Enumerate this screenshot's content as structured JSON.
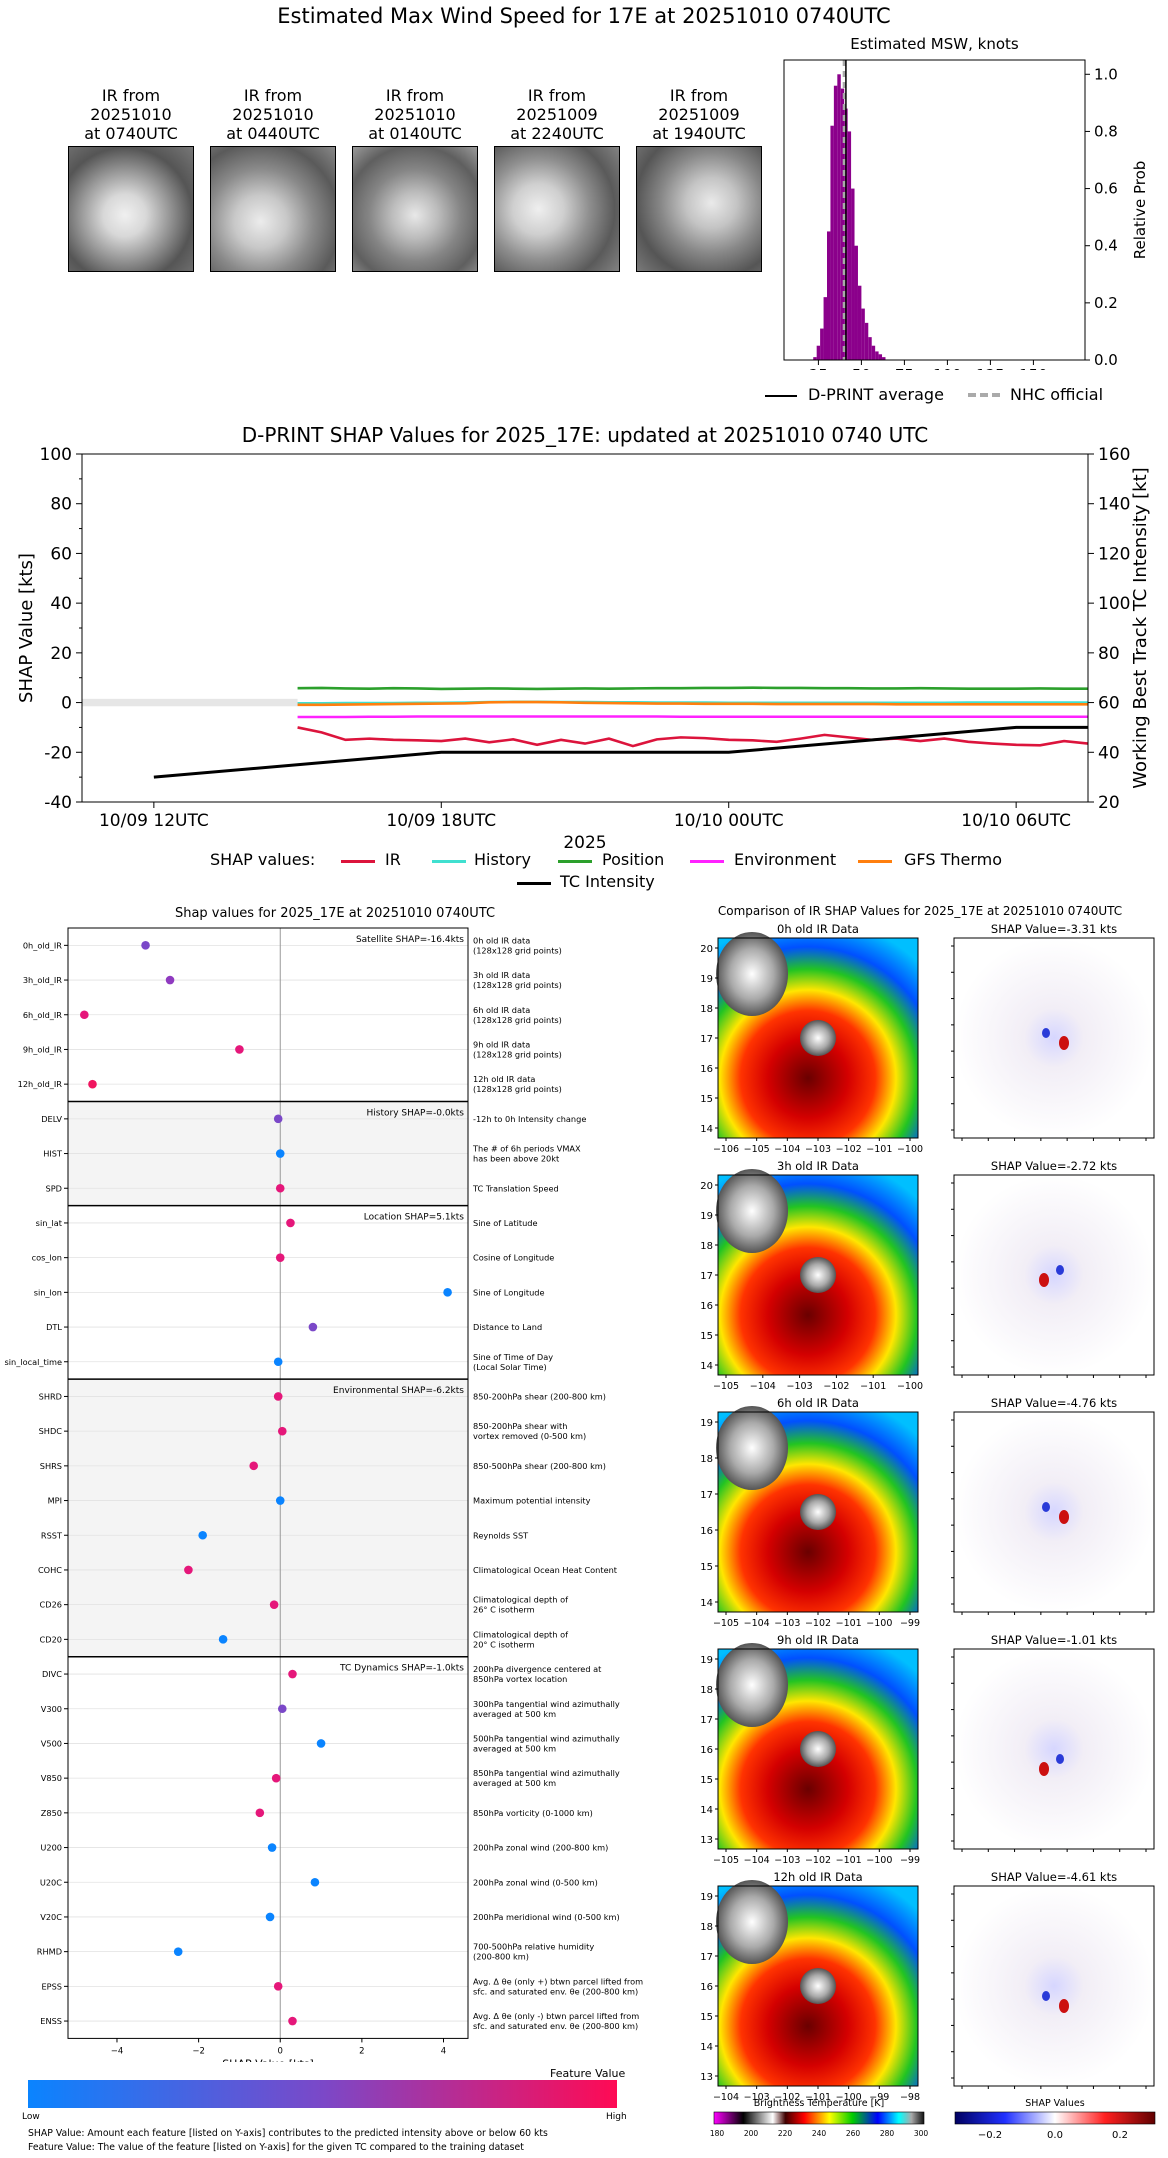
{
  "page_title": "Estimated Max Wind Speed for 17E at 20251010 0740UTC",
  "ir_thumbs": [
    {
      "l1": "IR from",
      "l2": "20251010",
      "l3": "at 0740UTC"
    },
    {
      "l1": "IR from",
      "l2": "20251010",
      "l3": "at 0440UTC"
    },
    {
      "l1": "IR from",
      "l2": "20251010",
      "l3": "at 0140UTC"
    },
    {
      "l1": "IR from",
      "l2": "20251009",
      "l3": "at 2240UTC"
    },
    {
      "l1": "IR from",
      "l2": "20251009",
      "l3": "at 1940UTC"
    }
  ],
  "hist_legend": {
    "avg": "D-PRINT average",
    "nhc": "NHC official"
  },
  "shap_legend": {
    "title": "SHAP values:",
    "tc": "TC Intensity"
  },
  "left_panel": {
    "title": "Shap values for 2025_17E at 20251010 0740UTC",
    "xlabel": "SHAP Value [kts]",
    "groups": [
      {
        "label": "Satellite SHAP=-16.4kts"
      },
      {
        "label": "History SHAP=-0.0kts"
      },
      {
        "label": "Location SHAP=5.1kts"
      },
      {
        "label": "Environmental SHAP=-6.2kts"
      },
      {
        "label": "TC Dynamics SHAP=-1.0kts"
      }
    ],
    "features": [
      {
        "name": "0h_old_IR",
        "desc": [
          "0h old IR data",
          "(128x128 grid points)"
        ],
        "value": -3.3,
        "color": "#7b48c8"
      },
      {
        "name": "3h_old_IR",
        "desc": [
          "3h old IR data",
          "(128x128 grid points)"
        ],
        "value": -2.7,
        "color": "#8f3ac0"
      },
      {
        "name": "6h_old_IR",
        "desc": [
          "6h old IR data",
          "(128x128 grid points)"
        ],
        "value": -4.8,
        "color": "#e5177a"
      },
      {
        "name": "9h_old_IR",
        "desc": [
          "9h old IR data",
          "(128x128 grid points)"
        ],
        "value": -1.0,
        "color": "#e5177a"
      },
      {
        "name": "12h_old_IR",
        "desc": [
          "12h old IR data",
          "(128x128 grid points)"
        ],
        "value": -4.6,
        "color": "#f0155f"
      },
      {
        "name": "DELV",
        "desc": [
          "-12h to 0h Intensity change"
        ],
        "value": -0.05,
        "color": "#7b48c8"
      },
      {
        "name": "HIST",
        "desc": [
          "The # of 6h periods VMAX",
          "has been above 20kt"
        ],
        "value": 0.0,
        "color": "#0a84ff"
      },
      {
        "name": "SPD",
        "desc": [
          "TC Translation Speed"
        ],
        "value": 0.0,
        "color": "#e5177a"
      },
      {
        "name": "sin_lat",
        "desc": [
          "Sine of Latitude"
        ],
        "value": 0.25,
        "color": "#e5177a"
      },
      {
        "name": "cos_lon",
        "desc": [
          "Cosine of Longitude"
        ],
        "value": 0.0,
        "color": "#e5177a"
      },
      {
        "name": "sin_lon",
        "desc": [
          "Sine of Longitude"
        ],
        "value": 4.1,
        "color": "#0a84ff"
      },
      {
        "name": "DTL",
        "desc": [
          "Distance to Land"
        ],
        "value": 0.8,
        "color": "#7b48c8"
      },
      {
        "name": "sin_local_time",
        "desc": [
          "Sine of Time of Day",
          "(Local Solar Time)"
        ],
        "value": -0.05,
        "color": "#0a84ff"
      },
      {
        "name": "SHRD",
        "desc": [
          "850-200hPa shear (200-800 km)"
        ],
        "value": -0.05,
        "color": "#e5177a"
      },
      {
        "name": "SHDC",
        "desc": [
          "850-200hPa shear with",
          "vortex removed (0-500 km)"
        ],
        "value": 0.05,
        "color": "#e5177a"
      },
      {
        "name": "SHRS",
        "desc": [
          "850-500hPa shear (200-800 km)"
        ],
        "value": -0.65,
        "color": "#e5177a"
      },
      {
        "name": "MPI",
        "desc": [
          "Maximum potential intensity"
        ],
        "value": 0.0,
        "color": "#0a84ff"
      },
      {
        "name": "RSST",
        "desc": [
          "Reynolds SST"
        ],
        "value": -1.9,
        "color": "#0a84ff"
      },
      {
        "name": "COHC",
        "desc": [
          "Climatological Ocean Heat Content"
        ],
        "value": -2.25,
        "color": "#e5177a"
      },
      {
        "name": "CD26",
        "desc": [
          "Climatological depth of",
          "26° C isotherm"
        ],
        "value": -0.15,
        "color": "#e5177a"
      },
      {
        "name": "CD20",
        "desc": [
          "Climatological depth of",
          "20° C isotherm"
        ],
        "value": -1.4,
        "color": "#0a84ff"
      },
      {
        "name": "DIVC",
        "desc": [
          "200hPa divergence centered at",
          "850hPa vortex location"
        ],
        "value": 0.3,
        "color": "#e5177a"
      },
      {
        "name": "V300",
        "desc": [
          "300hPa tangential wind azimuthally",
          "averaged at 500 km"
        ],
        "value": 0.05,
        "color": "#7b48c8"
      },
      {
        "name": "V500",
        "desc": [
          "500hPa tangential wind azimuthally",
          "averaged at 500 km"
        ],
        "value": 1.0,
        "color": "#0a84ff"
      },
      {
        "name": "V850",
        "desc": [
          "850hPa tangential wind azimuthally",
          "averaged at 500 km"
        ],
        "value": -0.1,
        "color": "#e5177a"
      },
      {
        "name": "Z850",
        "desc": [
          "850hPa vorticity (0-1000 km)"
        ],
        "value": -0.5,
        "color": "#e5177a"
      },
      {
        "name": "U200",
        "desc": [
          "200hPa zonal wind (200-800 km)"
        ],
        "value": -0.2,
        "color": "#0a84ff"
      },
      {
        "name": "U20C",
        "desc": [
          "200hPa zonal wind (0-500 km)"
        ],
        "value": 0.85,
        "color": "#0a84ff"
      },
      {
        "name": "V20C",
        "desc": [
          "200hPa meridional wind (0-500 km)"
        ],
        "value": -0.25,
        "color": "#0a84ff"
      },
      {
        "name": "RHMD",
        "desc": [
          "700-500hPa relative humidity",
          "(200-800 km)"
        ],
        "value": -2.5,
        "color": "#0a84ff"
      },
      {
        "name": "EPSS",
        "desc": [
          "Avg. Δ θe (only +) btwn parcel lifted from",
          "sfc. and saturated env. θe (200-800 km)"
        ],
        "value": -0.05,
        "color": "#e5177a"
      },
      {
        "name": "ENSS",
        "desc": [
          "Avg. Δ θe (only -) btwn parcel lifted from",
          "sfc. and saturated env. θe (200-800 km)"
        ],
        "value": 0.3,
        "color": "#e5177a"
      }
    ],
    "colorbar": {
      "label": "Feature Value",
      "low": "Low",
      "high": "High"
    },
    "footnotes": [
      "SHAP Value: Amount each feature [listed on Y-axis] contributes to the predicted intensity above or below 60 kts",
      "Feature Value: The value of the feature [listed on Y-axis] for the given TC compared to the training dataset"
    ]
  },
  "right_panel": {
    "title": "Comparison of IR SHAP Values for 2025_17E at 20251010 0740UTC",
    "rows": [
      {
        "ir_title": "0h old IR Data",
        "shap_title": "SHAP Value=-3.31 kts",
        "yticks": [
          "20",
          "19",
          "18",
          "17",
          "16",
          "15",
          "14"
        ],
        "xticks": [
          "−106",
          "−105",
          "−104",
          "−103",
          "−102",
          "−101",
          "−100"
        ]
      },
      {
        "ir_title": "3h old IR Data",
        "shap_title": "SHAP Value=-2.72 kts",
        "yticks": [
          "20",
          "19",
          "18",
          "17",
          "16",
          "15",
          "14"
        ],
        "xticks": [
          "−105",
          "−104",
          "−103",
          "−102",
          "−101",
          "−100"
        ]
      },
      {
        "ir_title": "6h old IR Data",
        "shap_title": "SHAP Value=-4.76 kts",
        "yticks": [
          "19",
          "18",
          "17",
          "16",
          "15",
          "14"
        ],
        "xticks": [
          "−105",
          "−104",
          "−103",
          "−102",
          "−101",
          "−100",
          "−99"
        ]
      },
      {
        "ir_title": "9h old IR Data",
        "shap_title": "SHAP Value=-1.01 kts",
        "yticks": [
          "19",
          "18",
          "17",
          "16",
          "15",
          "14",
          "13"
        ],
        "xticks": [
          "−105",
          "−104",
          "−103",
          "−102",
          "−101",
          "−100",
          "−99"
        ]
      },
      {
        "ir_title": "12h old IR Data",
        "shap_title": "SHAP Value=-4.61 kts",
        "yticks": [
          "19",
          "18",
          "17",
          "16",
          "15",
          "14",
          "13"
        ],
        "xticks": [
          "−104",
          "−103",
          "−102",
          "−101",
          "−100",
          "−99",
          "−98"
        ]
      }
    ],
    "bt_cbar": {
      "label": "Brightness Temperature [K]",
      "ticks": [
        "180",
        "200",
        "220",
        "240",
        "260",
        "280",
        "300"
      ]
    },
    "sv_cbar": {
      "label": "SHAP Values",
      "ticks": [
        "−0.2",
        "0.0",
        "0.2"
      ]
    }
  },
  "chart_data": [
    {
      "type": "bar",
      "title": "Estimated MSW, knots",
      "xlabel": "",
      "ylabel": "Relative Prob",
      "xlim": [
        5,
        180
      ],
      "ylim": [
        0,
        1.05
      ],
      "xticks": [
        25,
        50,
        75,
        100,
        125,
        150
      ],
      "yticks": [
        0.0,
        0.2,
        0.4,
        0.6,
        0.8,
        1.0
      ],
      "bin_width": 2,
      "bins": [
        {
          "x": 23,
          "y": 0.01
        },
        {
          "x": 25,
          "y": 0.05
        },
        {
          "x": 27,
          "y": 0.11
        },
        {
          "x": 29,
          "y": 0.22
        },
        {
          "x": 31,
          "y": 0.45
        },
        {
          "x": 33,
          "y": 0.82
        },
        {
          "x": 35,
          "y": 0.96
        },
        {
          "x": 37,
          "y": 1.0
        },
        {
          "x": 39,
          "y": 0.95
        },
        {
          "x": 41,
          "y": 0.88
        },
        {
          "x": 43,
          "y": 0.8
        },
        {
          "x": 45,
          "y": 0.6
        },
        {
          "x": 47,
          "y": 0.4
        },
        {
          "x": 49,
          "y": 0.26
        },
        {
          "x": 51,
          "y": 0.18
        },
        {
          "x": 53,
          "y": 0.13
        },
        {
          "x": 55,
          "y": 0.08
        },
        {
          "x": 57,
          "y": 0.05
        },
        {
          "x": 59,
          "y": 0.03
        },
        {
          "x": 61,
          "y": 0.02
        },
        {
          "x": 63,
          "y": 0.01
        }
      ],
      "dprint_average": 41,
      "nhc_official": 40,
      "color": "#8b008b"
    },
    {
      "type": "line",
      "title": "D-PRINT SHAP Values for 2025_17E: updated at 20251010 0740 UTC",
      "xlabel": "2025",
      "ylabel": "SHAP Value [kts]",
      "y2label": "Working Best Track TC Intensity [kt]",
      "ylim": [
        -40,
        100
      ],
      "y2lim": [
        20,
        160
      ],
      "yticks": [
        -40,
        -20,
        0,
        20,
        40,
        60,
        80,
        100
      ],
      "y2ticks": [
        20,
        40,
        60,
        80,
        100,
        120,
        140,
        160
      ],
      "xlim_hours": [
        -1.5,
        19.5
      ],
      "xtick_labels": [
        {
          "h": 0,
          "label": "10/09 12UTC"
        },
        {
          "h": 6,
          "label": "10/09 18UTC"
        },
        {
          "h": 12,
          "label": "10/10 00UTC"
        },
        {
          "h": 18,
          "label": "10/10 06UTC"
        }
      ],
      "x_hours": [
        3.0,
        3.5,
        4.0,
        4.5,
        5.0,
        5.5,
        6.0,
        6.5,
        7.0,
        7.5,
        8.0,
        8.5,
        9.0,
        9.5,
        10.0,
        10.5,
        11.0,
        11.5,
        12.0,
        12.5,
        13.0,
        13.5,
        14.0,
        14.5,
        15.0,
        15.5,
        16.0,
        16.5,
        17.0,
        17.5,
        18.0,
        18.5,
        19.0,
        19.5
      ],
      "series": [
        {
          "name": "IR",
          "color": "#dc143c",
          "values": [
            -10,
            -12,
            -15,
            -14.5,
            -15,
            -15.2,
            -15.5,
            -14.5,
            -16,
            -14.8,
            -17,
            -15,
            -16.5,
            -14.5,
            -17.5,
            -14.8,
            -14,
            -14.3,
            -15,
            -15.2,
            -15.8,
            -14.5,
            -13,
            -14,
            -15,
            -14.5,
            -15.5,
            -14.5,
            -15.8,
            -16.5,
            -17,
            -17.2,
            -15.5,
            -16.5
          ]
        },
        {
          "name": "History",
          "color": "#40e0d0",
          "values": [
            -0.3,
            -0.3,
            -0.2,
            -0.2,
            -0.2,
            -0.1,
            -0.1,
            0.0,
            0.2,
            0.3,
            0.3,
            0.2,
            0.2,
            0.1,
            0.1,
            0.0,
            0.0,
            0.0,
            -0.1,
            -0.1,
            -0.1,
            -0.1,
            -0.1,
            -0.1,
            -0.1,
            -0.1,
            -0.1,
            -0.1,
            0.0,
            0.0,
            0.0,
            0.0,
            0.0,
            0.0
          ]
        },
        {
          "name": "Position",
          "color": "#2ca02c",
          "values": [
            5.8,
            5.9,
            5.7,
            5.6,
            5.8,
            5.7,
            5.5,
            5.6,
            5.7,
            5.6,
            5.5,
            5.6,
            5.7,
            5.6,
            5.7,
            5.8,
            5.8,
            5.9,
            5.9,
            6.0,
            5.9,
            5.9,
            5.8,
            5.8,
            5.7,
            5.7,
            5.8,
            5.7,
            5.6,
            5.6,
            5.6,
            5.7,
            5.6,
            5.6
          ]
        },
        {
          "name": "Environment",
          "color": "#ff22ff",
          "values": [
            -5.8,
            -5.8,
            -5.8,
            -5.7,
            -5.7,
            -5.6,
            -5.6,
            -5.6,
            -5.6,
            -5.6,
            -5.6,
            -5.6,
            -5.6,
            -5.6,
            -5.6,
            -5.6,
            -5.7,
            -5.7,
            -5.7,
            -5.7,
            -5.7,
            -5.7,
            -5.7,
            -5.7,
            -5.7,
            -5.7,
            -5.7,
            -5.7,
            -5.7,
            -5.7,
            -5.7,
            -5.7,
            -5.7,
            -5.7
          ]
        },
        {
          "name": "GFS Thermo",
          "color": "#ff7f0e",
          "values": [
            -0.9,
            -0.9,
            -0.8,
            -0.7,
            -0.6,
            -0.5,
            -0.4,
            -0.3,
            0.1,
            0.2,
            0.2,
            0.1,
            -0.1,
            -0.2,
            -0.3,
            -0.4,
            -0.4,
            -0.5,
            -0.5,
            -0.5,
            -0.6,
            -0.6,
            -0.6,
            -0.6,
            -0.6,
            -0.7,
            -0.7,
            -0.7,
            -0.7,
            -0.7,
            -0.7,
            -0.7,
            -0.7,
            -0.7
          ]
        }
      ],
      "tc_intensity": {
        "name": "TC Intensity",
        "color": "#000000",
        "x_hours": [
          0,
          6,
          12,
          18,
          19.5
        ],
        "values": [
          30,
          40,
          40,
          50,
          50
        ]
      }
    }
  ]
}
